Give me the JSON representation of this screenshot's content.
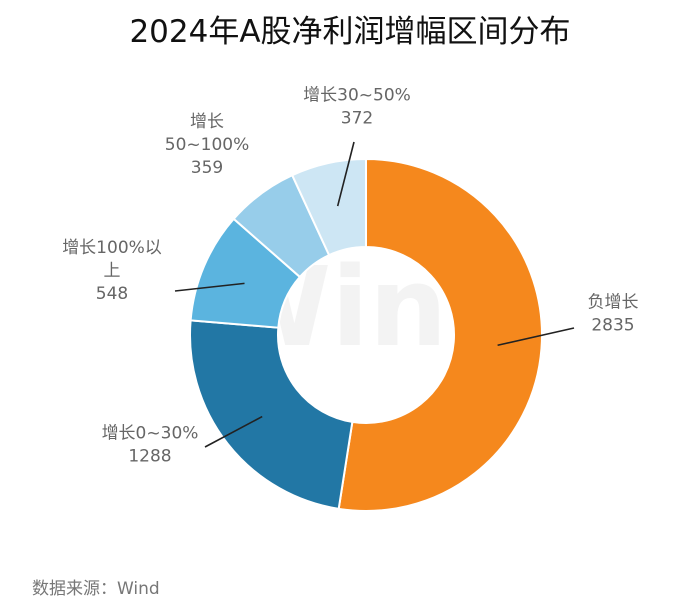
{
  "chart_data": {
    "type": "pie",
    "title": "2024年A股净利润增幅区间分布",
    "source": "数据来源：Wind",
    "watermark": "Wind",
    "categories": [
      "负增长",
      "增长0~30%",
      "增长100%以上",
      "增长50~100%",
      "增长30~50%"
    ],
    "values": [
      2835,
      1288,
      548,
      359,
      372
    ],
    "colors": [
      "#F5881D",
      "#2277A5",
      "#5BB4DF",
      "#97CDEA",
      "#CDE6F4"
    ],
    "labels": [
      {
        "lines": [
          "负增长"
        ],
        "value": "2835"
      },
      {
        "lines": [
          "增长0~30%"
        ],
        "value": "1288"
      },
      {
        "lines": [
          "增长100%以",
          "上"
        ],
        "value": "548"
      },
      {
        "lines": [
          "增长",
          "50~100%"
        ],
        "value": "359"
      },
      {
        "lines": [
          "增长30~50%"
        ],
        "value": "372"
      }
    ]
  }
}
